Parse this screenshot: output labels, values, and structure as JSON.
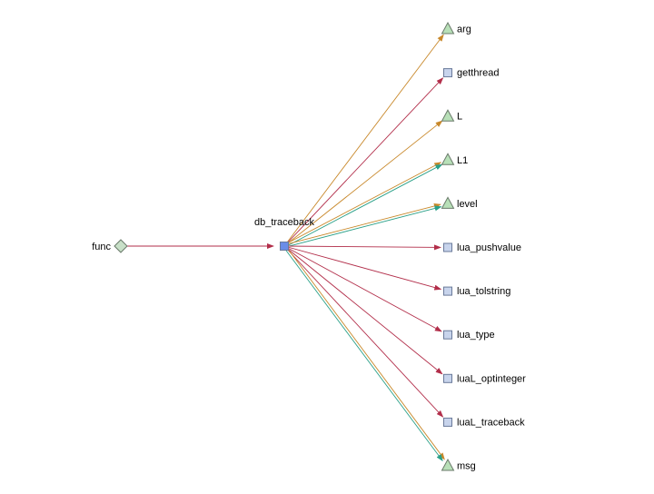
{
  "colors": {
    "call_edge": "#b22e4a",
    "read_edge": "#c8882a",
    "write_edge": "#2aa088",
    "function_fill": "#c8d4ec",
    "center_fill": "#6a8ce8",
    "variable_fill": "#b8e0b8",
    "caller_fill": "#c8e0c8",
    "node_stroke": "#6a7a6a"
  },
  "graph": {
    "caller": {
      "label": "func",
      "shape": "diamond"
    },
    "center": {
      "label": "db_traceback",
      "shape": "square"
    },
    "targets": [
      {
        "label": "arg",
        "shape": "triangle",
        "edges": [
          "read"
        ]
      },
      {
        "label": "getthread",
        "shape": "square",
        "edges": [
          "call"
        ]
      },
      {
        "label": "L",
        "shape": "triangle",
        "edges": [
          "read"
        ]
      },
      {
        "label": "L1",
        "shape": "triangle",
        "edges": [
          "read",
          "write"
        ]
      },
      {
        "label": "level",
        "shape": "triangle",
        "edges": [
          "read",
          "write"
        ]
      },
      {
        "label": "lua_pushvalue",
        "shape": "square",
        "edges": [
          "call"
        ]
      },
      {
        "label": "lua_tolstring",
        "shape": "square",
        "edges": [
          "call"
        ]
      },
      {
        "label": "lua_type",
        "shape": "square",
        "edges": [
          "call"
        ]
      },
      {
        "label": "luaL_optinteger",
        "shape": "square",
        "edges": [
          "call"
        ]
      },
      {
        "label": "luaL_traceback",
        "shape": "square",
        "edges": [
          "call"
        ]
      },
      {
        "label": "msg",
        "shape": "triangle",
        "edges": [
          "read",
          "write"
        ]
      }
    ]
  }
}
